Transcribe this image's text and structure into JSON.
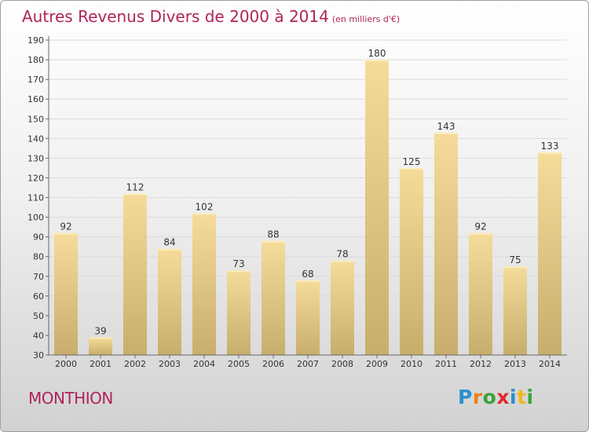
{
  "title": "Autres Revenus Divers de 2000 à 2014",
  "subtitle": "(en milliers d'€)",
  "town": "MONTHION",
  "logo": {
    "letters": [
      "P",
      "r",
      "o",
      "x",
      "i",
      "t",
      "i"
    ],
    "colors": [
      "#2a8fd0",
      "#f07f1c",
      "#3aa33a",
      "#e02a2a",
      "#2a8fd0",
      "#f0b81c",
      "#3aa33a"
    ]
  },
  "colors": {
    "bar_top": "#f6dc9a",
    "bar_bottom": "#c8ae6c",
    "title": "#b0245a"
  },
  "chart_data": {
    "type": "bar",
    "title": "Autres Revenus Divers de 2000 à 2014",
    "subtitle": "(en milliers d'€)",
    "categories": [
      "2000",
      "2001",
      "2002",
      "2003",
      "2004",
      "2005",
      "2006",
      "2007",
      "2008",
      "2009",
      "2010",
      "2011",
      "2012",
      "2013",
      "2014"
    ],
    "values": [
      92,
      39,
      112,
      84,
      102,
      73,
      88,
      68,
      78,
      180,
      125,
      143,
      92,
      75,
      133
    ],
    "ylim": [
      30,
      190
    ],
    "yticks": [
      30,
      40,
      50,
      60,
      70,
      80,
      90,
      100,
      110,
      120,
      130,
      140,
      150,
      160,
      170,
      180,
      190
    ],
    "grid": true,
    "legend": "none"
  }
}
